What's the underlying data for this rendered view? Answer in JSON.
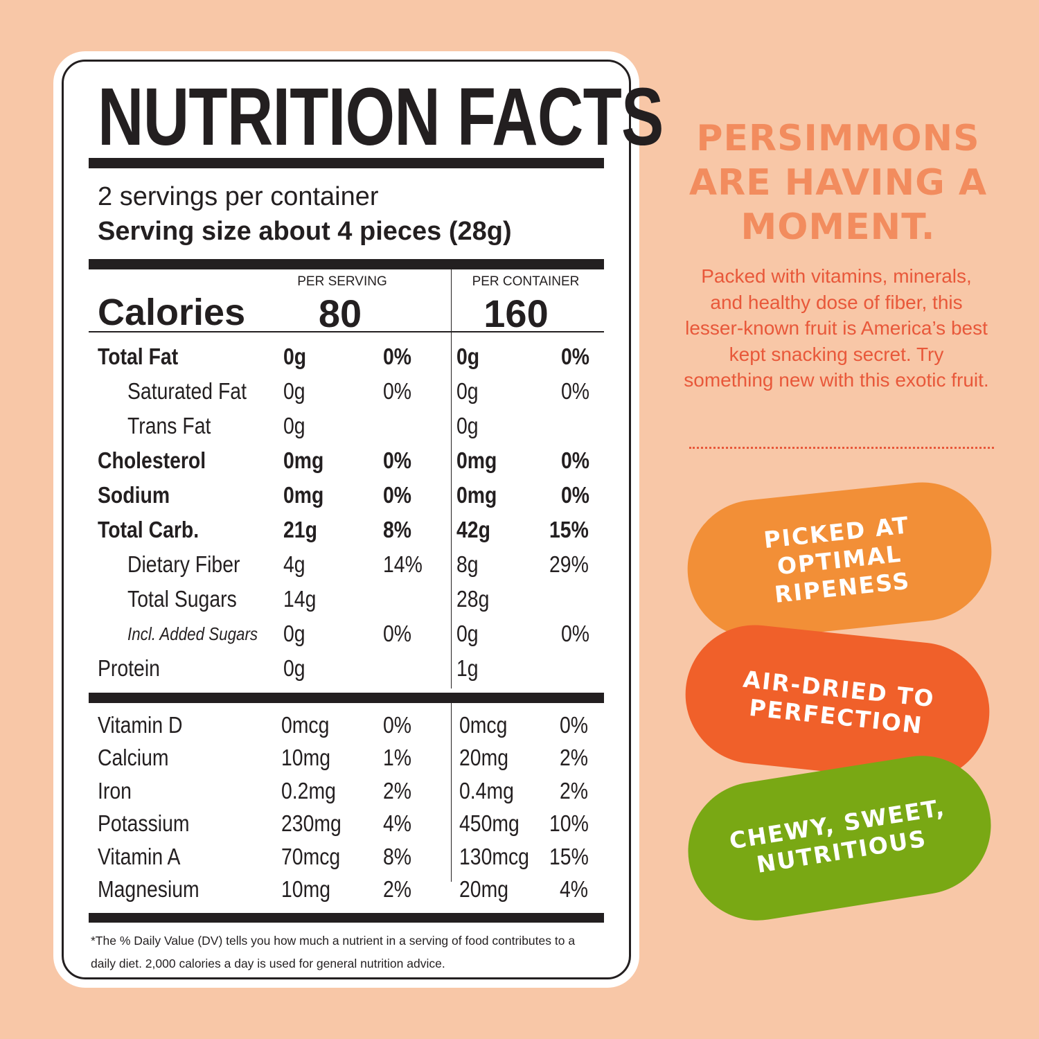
{
  "label": {
    "title": "NUTRITION FACTS",
    "servings_per_container": "2 servings per container",
    "serving_size": "Serving size about 4 pieces (28g)",
    "per_serving_header": "PER SERVING",
    "per_container_header": "PER CONTAINER",
    "calories_label": "Calories",
    "calories_per_serving": "80",
    "calories_per_container": "160",
    "nutrients": [
      {
        "name": "Total Fat",
        "s_amt": "0g",
        "s_dv": "0%",
        "c_amt": "0g",
        "c_dv": "0%"
      },
      {
        "name": "Saturated Fat",
        "s_amt": "0g",
        "s_dv": "0%",
        "c_amt": "0g",
        "c_dv": "0%"
      },
      {
        "name": "Trans Fat",
        "s_amt": "0g",
        "s_dv": "",
        "c_amt": "0g",
        "c_dv": ""
      },
      {
        "name": "Cholesterol",
        "s_amt": "0mg",
        "s_dv": "0%",
        "c_amt": "0mg",
        "c_dv": "0%"
      },
      {
        "name": "Sodium",
        "s_amt": "0mg",
        "s_dv": "0%",
        "c_amt": "0mg",
        "c_dv": "0%"
      },
      {
        "name": "Total Carb.",
        "s_amt": "21g",
        "s_dv": "8%",
        "c_amt": "42g",
        "c_dv": "15%"
      },
      {
        "name": "Dietary Fiber",
        "s_amt": "4g",
        "s_dv": "14%",
        "c_amt": "8g",
        "c_dv": "29%"
      },
      {
        "name": "Total Sugars",
        "s_amt": "14g",
        "s_dv": "",
        "c_amt": "28g",
        "c_dv": ""
      },
      {
        "name": "Incl. Added Sugars",
        "s_amt": "0g",
        "s_dv": "0%",
        "c_amt": "0g",
        "c_dv": "0%"
      },
      {
        "name": "Protein",
        "s_amt": "0g",
        "s_dv": "",
        "c_amt": "1g",
        "c_dv": ""
      }
    ],
    "vitamins": [
      {
        "name": "Vitamin D",
        "s_amt": "0mcg",
        "s_dv": "0%",
        "c_amt": "0mcg",
        "c_dv": "0%"
      },
      {
        "name": "Calcium",
        "s_amt": "10mg",
        "s_dv": "1%",
        "c_amt": "20mg",
        "c_dv": "2%"
      },
      {
        "name": "Iron",
        "s_amt": "0.2mg",
        "s_dv": "2%",
        "c_amt": "0.4mg",
        "c_dv": "2%"
      },
      {
        "name": "Potassium",
        "s_amt": "230mg",
        "s_dv": "4%",
        "c_amt": "450mg",
        "c_dv": "10%"
      },
      {
        "name": "Vitamin A",
        "s_amt": "70mcg",
        "s_dv": "8%",
        "c_amt": "130mcg",
        "c_dv": "15%"
      },
      {
        "name": "Magnesium",
        "s_amt": "10mg",
        "s_dv": "2%",
        "c_amt": "20mg",
        "c_dv": "4%"
      }
    ],
    "footnote": "*The % Daily Value (DV) tells you how much a nutrient in a serving of food contributes to a daily diet. 2,000 calories a day is used for general nutrition advice."
  },
  "promo": {
    "headline": "PERSIMMONS ARE HAVING A MOMENT.",
    "blurb": "Packed with vitamins, minerals, and healthy dose of fiber, this lesser-known fruit is America’s best kept snacking secret. Try something new with this exotic fruit.",
    "pills": [
      {
        "text": "PICKED AT\nOPTIMAL\nRIPENESS",
        "color": "#f28f37"
      },
      {
        "text": "AIR-DRIED TO\nPERFECTION",
        "color": "#f0602a"
      },
      {
        "text": "CHEWY, SWEET,\nNUTRITIOUS",
        "color": "#79a814"
      }
    ]
  },
  "colors": {
    "background": "#f8c7a7",
    "headline": "#f28c5e",
    "blurb": "#e8583a",
    "ink": "#231f20"
  }
}
